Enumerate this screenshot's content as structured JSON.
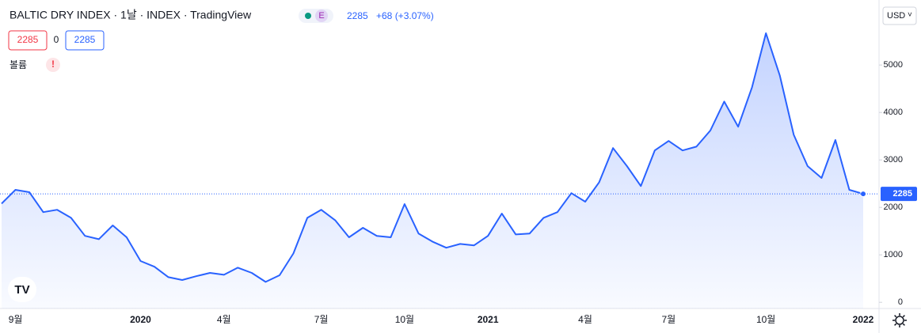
{
  "chart_data": {
    "type": "area",
    "title": "BALTIC DRY INDEX · 1날 · INDEX · TradingView",
    "badge": "E",
    "last_quote": "2285",
    "change": "+68 (+3.07%)",
    "ohlc_boxes": [
      "2285",
      "0",
      "2285"
    ],
    "volume_label": "볼륨",
    "volume_warning": "!",
    "currency": "USD",
    "currency_caret": "˅",
    "logo": "TV",
    "categories": [
      null,
      "9월",
      null,
      null,
      null,
      null,
      null,
      null,
      null,
      null,
      "2020",
      null,
      null,
      null,
      null,
      null,
      "4월",
      null,
      null,
      null,
      null,
      null,
      null,
      "7월",
      null,
      null,
      null,
      null,
      null,
      "10월",
      null,
      null,
      null,
      null,
      null,
      "2021",
      null,
      null,
      null,
      null,
      null,
      null,
      "4월",
      null,
      null,
      null,
      null,
      null,
      "7월",
      null,
      null,
      null,
      null,
      null,
      null,
      "10월",
      null,
      null,
      null,
      null,
      null,
      null,
      "2022"
    ],
    "series": [
      {
        "name": "BALTIC DRY INDEX",
        "color": "#2962ff",
        "values": [
          2080,
          2370,
          2320,
          1900,
          1950,
          1780,
          1400,
          1330,
          1620,
          1370,
          870,
          750,
          530,
          470,
          550,
          620,
          580,
          730,
          620,
          430,
          570,
          1030,
          1780,
          1950,
          1730,
          1370,
          1570,
          1400,
          1370,
          2070,
          1450,
          1280,
          1150,
          1230,
          1200,
          1400,
          1870,
          1430,
          1450,
          1780,
          1900,
          2300,
          2120,
          2530,
          3250,
          2870,
          2450,
          3200,
          3400,
          3200,
          3280,
          3620,
          4230,
          3700,
          4530,
          5670,
          4780,
          3530,
          2870,
          2620,
          3420,
          2370,
          2285
        ]
      }
    ],
    "last_price": 2285,
    "ylim": [
      -130,
      6370
    ],
    "yticks": [
      0,
      1000,
      2000,
      3000,
      4000,
      5000
    ],
    "grid": false
  }
}
